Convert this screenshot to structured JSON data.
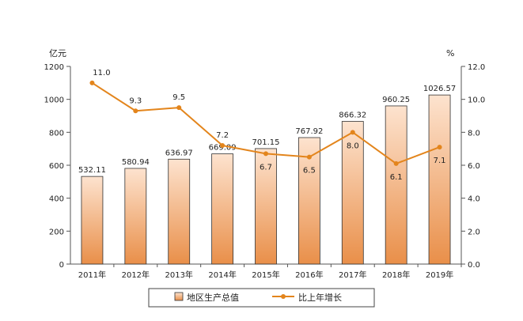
{
  "chart_data": {
    "type": "bar+line",
    "categories": [
      "2011年",
      "2012年",
      "2013年",
      "2014年",
      "2015年",
      "2016年",
      "2017年",
      "2018年",
      "2019年"
    ],
    "series": [
      {
        "name": "地区生产总值",
        "type": "bar",
        "axis": "left",
        "values": [
          532.11,
          580.94,
          636.97,
          669.09,
          701.15,
          767.92,
          866.32,
          960.25,
          1026.57
        ],
        "labels": [
          "532.11",
          "580.94",
          "636.97",
          "669.09",
          "701.15",
          "767.92",
          "866.32",
          "960.25",
          "1026.57"
        ]
      },
      {
        "name": "比上年增长",
        "type": "line",
        "axis": "right",
        "values": [
          11.0,
          9.3,
          9.5,
          7.2,
          6.7,
          6.5,
          8.0,
          6.1,
          7.1
        ],
        "labels": [
          "11.0",
          "9.3",
          "9.5",
          "7.2",
          "6.7",
          "6.5",
          "8.0",
          "6.1",
          "7.1"
        ]
      }
    ],
    "left_axis": {
      "unit": "亿元",
      "ylim": [
        0,
        1200
      ],
      "ticks": [
        0,
        200,
        400,
        600,
        800,
        1000,
        1200
      ],
      "tick_labels": [
        "0",
        "200",
        "400",
        "600",
        "800",
        "1000",
        "1200"
      ]
    },
    "right_axis": {
      "unit": "%",
      "ylim": [
        0,
        12
      ],
      "ticks": [
        0,
        2,
        4,
        6,
        8,
        10,
        12
      ],
      "tick_labels": [
        "0.0",
        "2.0",
        "4.0",
        "6.0",
        "8.0",
        "10.0",
        "12.0"
      ]
    },
    "legend": {
      "position": "bottom",
      "items": [
        "地区生产总值",
        "比上年增长"
      ]
    },
    "colors": {
      "bar_top": "#fde3cf",
      "bar_bottom": "#e98f49",
      "bar_stroke": "#333333",
      "line": "#e3851c"
    },
    "grid": false
  }
}
